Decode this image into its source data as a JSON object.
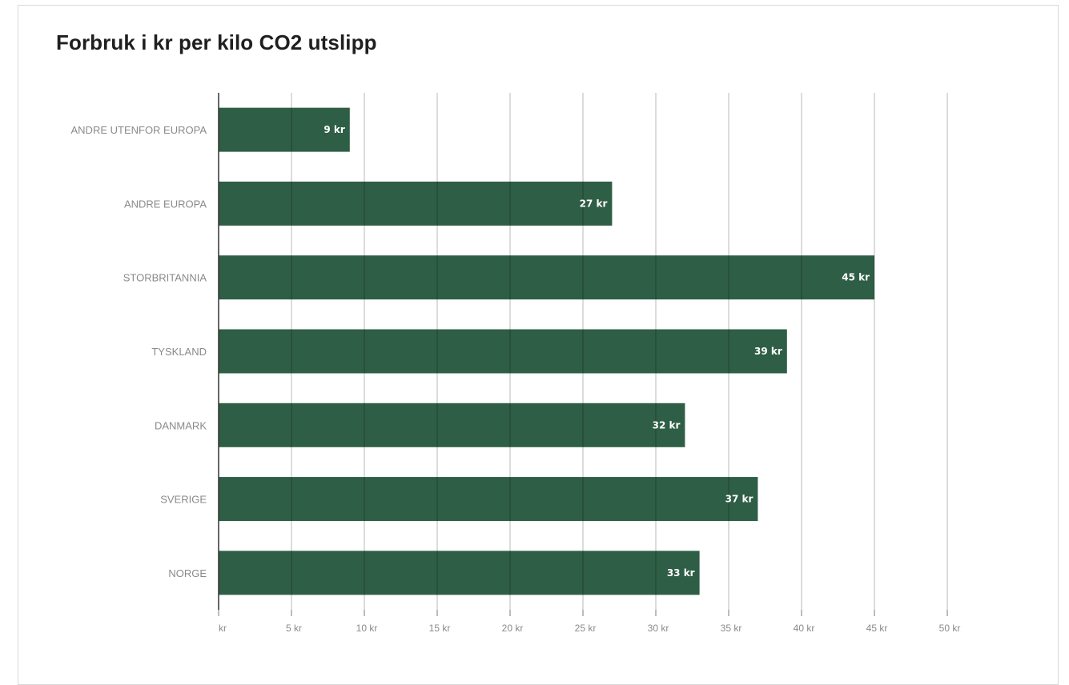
{
  "chart_data": {
    "type": "bar",
    "orientation": "horizontal",
    "title": "Forbruk i kr per kilo CO2 utslipp",
    "categories": [
      "ANDRE UTENFOR EUROPA",
      "ANDRE EUROPA",
      "STORBRITANNIA",
      "TYSKLAND",
      "DANMARK",
      "SVERIGE",
      "NORGE"
    ],
    "values": [
      9,
      27,
      45,
      39,
      32,
      37,
      33
    ],
    "data_labels": [
      "9 kr",
      "27 kr",
      "45 kr",
      "39 kr",
      "32 kr",
      "37 kr",
      "33 kr"
    ],
    "xlim": [
      0,
      50
    ],
    "x_ticks": [
      0,
      5,
      10,
      15,
      20,
      25,
      30,
      35,
      40,
      45,
      50
    ],
    "x_tick_labels": [
      "kr",
      "5 kr",
      "10 kr",
      "15 kr",
      "20 kr",
      "25 kr",
      "30 kr",
      "35 kr",
      "40 kr",
      "45 kr",
      "50 kr"
    ],
    "grid": true,
    "legend": "none",
    "bar_color": "#2e5e45"
  }
}
